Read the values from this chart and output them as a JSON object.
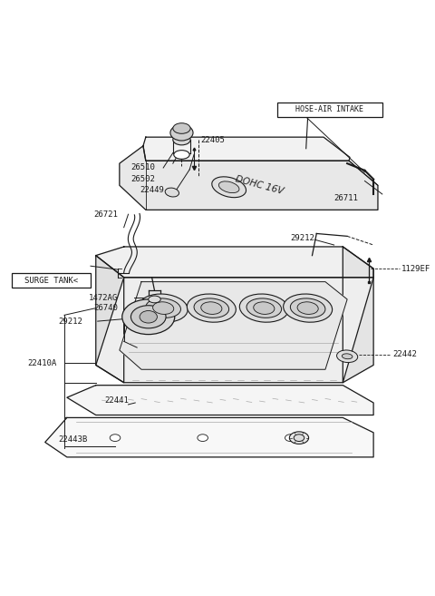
{
  "bg_color": "#ffffff",
  "lc": "#1a1a1a",
  "tc": "#1a1a1a",
  "figsize": [
    4.8,
    6.57
  ],
  "dpi": 100,
  "labels": {
    "26510": "26510",
    "26502": "26502",
    "22405": "22405",
    "22449": "22449",
    "26721": "26721",
    "26711": "26711",
    "29212a": "29212",
    "1472AG": "1472AG",
    "26740": "26740",
    "1129EF": "1129EF",
    "29212b": "29212",
    "22442": "22442",
    "22410A": "22410A",
    "22441": "22441",
    "22443B": "22443B",
    "HOSE_AIR": "HOSE-AIR INTAKE",
    "SURGE_TANK": "SURGE TANK<"
  }
}
